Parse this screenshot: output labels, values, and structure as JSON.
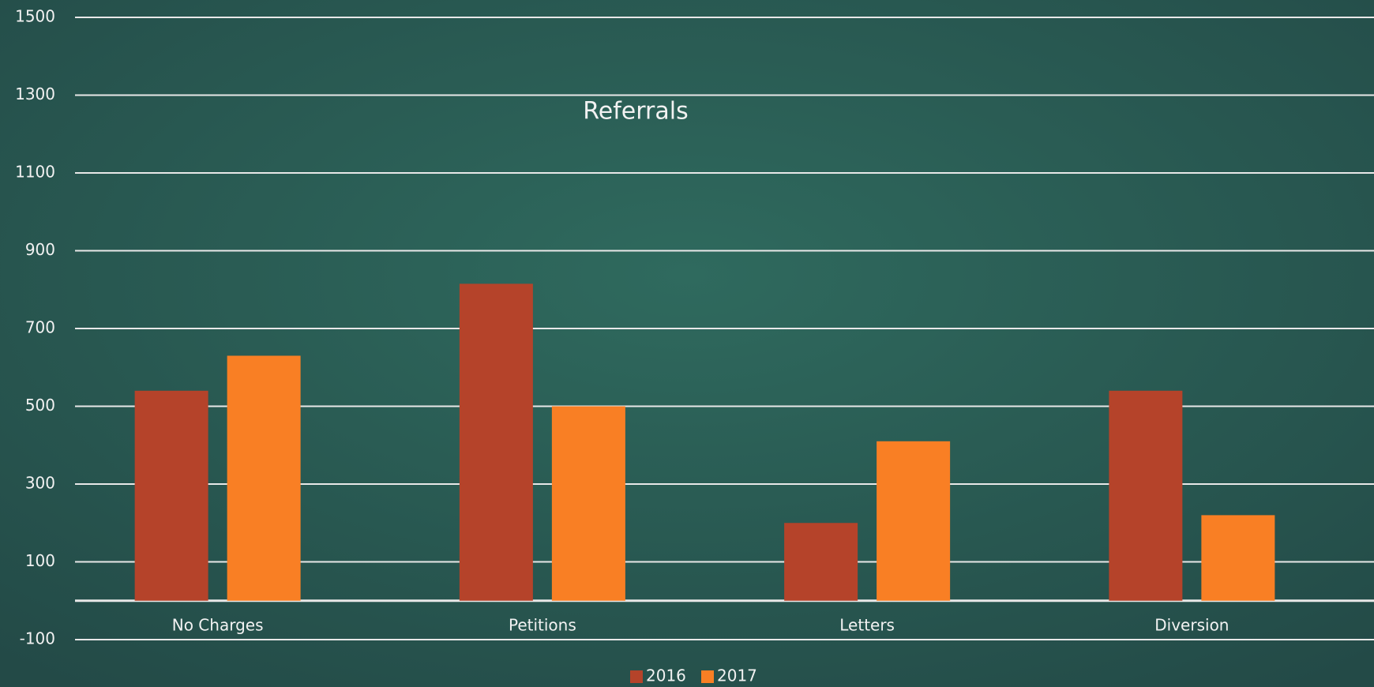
{
  "chart_data": {
    "type": "bar",
    "title": "Referrals",
    "categories": [
      "No Charges",
      "Petitions",
      "Letters",
      "Diversion"
    ],
    "series": [
      {
        "name": "2016",
        "color": "#b5432a",
        "values": [
          540,
          815,
          200,
          540
        ]
      },
      {
        "name": "2017",
        "color": "#f97f24",
        "values": [
          630,
          500,
          410,
          220
        ]
      }
    ],
    "ylim": [
      -100,
      1500
    ],
    "yticks": [
      -100,
      100,
      300,
      500,
      700,
      900,
      1100,
      1300,
      1500
    ],
    "grid": true,
    "legend": "bottom"
  }
}
